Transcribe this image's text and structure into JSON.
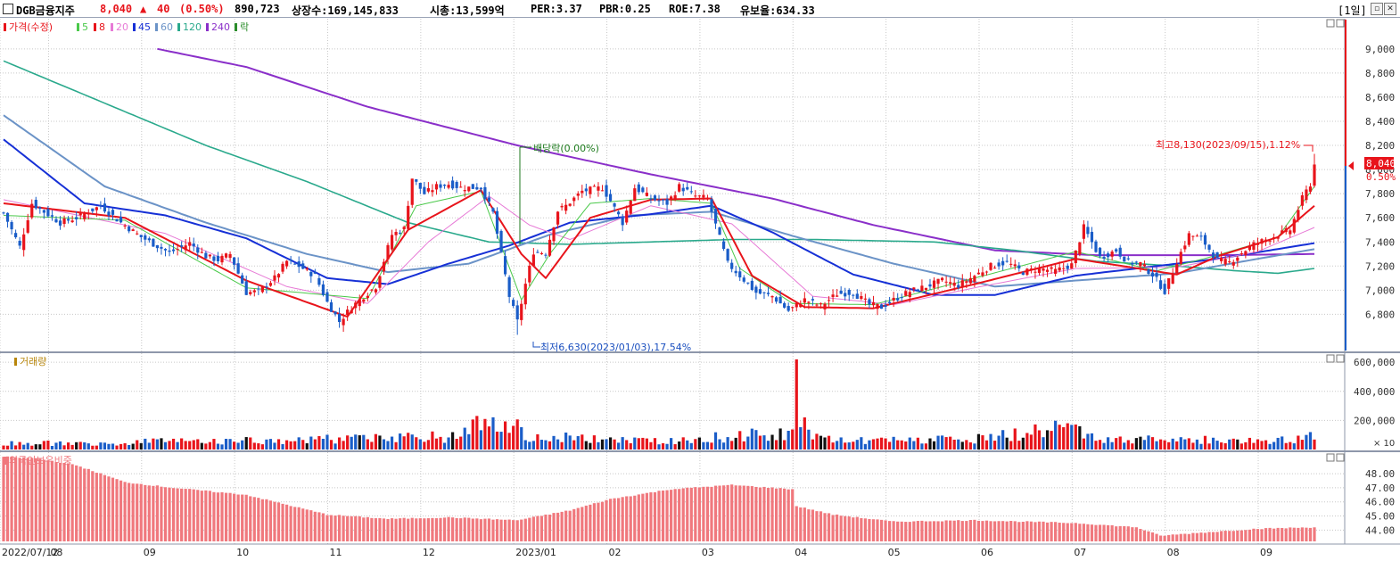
{
  "header": {
    "name": "DGB금융지주",
    "price": "8,040",
    "change_sign": "▲",
    "change": "40",
    "change_pct": "(0.50%)",
    "volume": "890,723",
    "listed": "상장수:169,145,833",
    "market_cap": "시총:13,599억",
    "per": "PER:3.37",
    "pbr": "PBR:0.25",
    "roe": "ROE:7.38",
    "reserve": "유보율:634.33",
    "period": "[1일]"
  },
  "price_panel": {
    "legend_title": "가격(수정)",
    "legend_items": [
      "5",
      "8",
      "20",
      "45",
      "60",
      "120",
      "240",
      "락"
    ],
    "current_price": "8,040",
    "current_pct": "0.50%",
    "high_note": "최고8,130(2023/09/15),1.12%",
    "low_note": "최저6,630(2023/01/03),17.54%",
    "div_note": "배당락(0.00%)"
  },
  "volume_panel": {
    "legend_title": "거래량",
    "unit": "× 10"
  },
  "foreign_panel": {
    "legend_title": "외국인보유비중"
  },
  "colors": {
    "up": "#e8141b",
    "down": "#1a5dc8",
    "ma5": "#4ac94a",
    "ma8": "#e8141b",
    "ma20": "#e77ad6",
    "ma45": "#1630d6",
    "ma60": "#6b93c7",
    "ma120": "#2aa98c",
    "ma240": "#8a2fc9",
    "foreign": "#f0787d"
  },
  "chart_data": [
    {
      "type": "candlestick",
      "title": "가격(수정)",
      "y_ticks": [
        6800,
        7000,
        7200,
        7400,
        7600,
        7800,
        8000,
        8200,
        8400,
        8600,
        8800,
        9000
      ],
      "ylim": [
        6500,
        9250
      ],
      "x_labels": [
        "2022/07/12",
        "08",
        "09",
        "10",
        "11",
        "12",
        "2023/01",
        "02",
        "03",
        "04",
        "05",
        "06",
        "07",
        "08",
        "09"
      ],
      "x_label_index": [
        0,
        12,
        35,
        58,
        81,
        104,
        127,
        150,
        173,
        196,
        219,
        242,
        265,
        288,
        311
      ],
      "close_anchors": [
        [
          0,
          7640
        ],
        [
          4,
          7360
        ],
        [
          7,
          7720
        ],
        [
          10,
          7650
        ],
        [
          14,
          7560
        ],
        [
          18,
          7600
        ],
        [
          24,
          7700
        ],
        [
          29,
          7560
        ],
        [
          34,
          7440
        ],
        [
          41,
          7310
        ],
        [
          46,
          7390
        ],
        [
          50,
          7280
        ],
        [
          53,
          7250
        ],
        [
          56,
          7300
        ],
        [
          60,
          6980
        ],
        [
          63,
          6990
        ],
        [
          67,
          7100
        ],
        [
          70,
          7240
        ],
        [
          73,
          7200
        ],
        [
          77,
          7120
        ],
        [
          80,
          6900
        ],
        [
          83,
          6740
        ],
        [
          86,
          6860
        ],
        [
          89,
          6950
        ],
        [
          92,
          7030
        ],
        [
          96,
          7460
        ],
        [
          99,
          7510
        ],
        [
          101,
          7930
        ],
        [
          104,
          7800
        ],
        [
          107,
          7860
        ],
        [
          110,
          7880
        ],
        [
          113,
          7850
        ],
        [
          118,
          7850
        ],
        [
          121,
          7640
        ],
        [
          125,
          6950
        ],
        [
          127,
          6740
        ],
        [
          129,
          7050
        ],
        [
          131,
          7320
        ],
        [
          134,
          7310
        ],
        [
          137,
          7660
        ],
        [
          139,
          7700
        ],
        [
          143,
          7820
        ],
        [
          148,
          7850
        ],
        [
          150,
          7740
        ],
        [
          153,
          7560
        ],
        [
          156,
          7850
        ],
        [
          160,
          7760
        ],
        [
          164,
          7720
        ],
        [
          167,
          7860
        ],
        [
          171,
          7780
        ],
        [
          174,
          7760
        ],
        [
          176,
          7540
        ],
        [
          179,
          7220
        ],
        [
          182,
          7120
        ],
        [
          186,
          6980
        ],
        [
          190,
          6950
        ],
        [
          194,
          6830
        ],
        [
          198,
          6920
        ],
        [
          202,
          6870
        ],
        [
          206,
          6970
        ],
        [
          210,
          6980
        ],
        [
          214,
          6880
        ],
        [
          217,
          6860
        ],
        [
          220,
          6920
        ],
        [
          224,
          6990
        ],
        [
          228,
          7030
        ],
        [
          232,
          7080
        ],
        [
          236,
          7040
        ],
        [
          240,
          7120
        ],
        [
          244,
          7200
        ],
        [
          248,
          7230
        ],
        [
          252,
          7150
        ],
        [
          256,
          7180
        ],
        [
          260,
          7160
        ],
        [
          264,
          7210
        ],
        [
          267,
          7520
        ],
        [
          271,
          7270
        ],
        [
          275,
          7330
        ],
        [
          278,
          7230
        ],
        [
          281,
          7220
        ],
        [
          284,
          7130
        ],
        [
          287,
          6990
        ],
        [
          290,
          7240
        ],
        [
          293,
          7460
        ],
        [
          296,
          7430
        ],
        [
          300,
          7250
        ],
        [
          303,
          7230
        ],
        [
          306,
          7310
        ],
        [
          309,
          7380
        ],
        [
          312,
          7420
        ],
        [
          315,
          7460
        ],
        [
          318,
          7500
        ],
        [
          321,
          7760
        ],
        [
          323,
          7880
        ],
        [
          324,
          8040
        ]
      ],
      "min_point": {
        "index": 127,
        "value": 6630,
        "date": "2023/01/03"
      },
      "max_point": {
        "index": 324,
        "value": 8130,
        "date": "2023/09/15"
      },
      "ma_lines": [
        {
          "name": "5",
          "anchors": [
            [
              0,
              7620
            ],
            [
              30,
              7580
            ],
            [
              60,
              7020
            ],
            [
              90,
              6930
            ],
            [
              102,
              7700
            ],
            [
              118,
              7820
            ],
            [
              124,
              7280
            ],
            [
              128,
              6920
            ],
            [
              135,
              7300
            ],
            [
              145,
              7720
            ],
            [
              160,
              7760
            ],
            [
              175,
              7720
            ],
            [
              182,
              7180
            ],
            [
              195,
              6890
            ],
            [
              215,
              6880
            ],
            [
              240,
              7100
            ],
            [
              265,
              7320
            ],
            [
              285,
              7160
            ],
            [
              300,
              7290
            ],
            [
              315,
              7440
            ],
            [
              324,
              7860
            ]
          ]
        },
        {
          "name": "8",
          "anchors": [
            [
              0,
              7720
            ],
            [
              30,
              7600
            ],
            [
              60,
              7080
            ],
            [
              85,
              6780
            ],
            [
              100,
              7500
            ],
            [
              118,
              7830
            ],
            [
              128,
              7300
            ],
            [
              134,
              7100
            ],
            [
              145,
              7600
            ],
            [
              160,
              7750
            ],
            [
              175,
              7760
            ],
            [
              185,
              7120
            ],
            [
              198,
              6860
            ],
            [
              215,
              6850
            ],
            [
              240,
              7050
            ],
            [
              265,
              7260
            ],
            [
              290,
              7130
            ],
            [
              300,
              7280
            ],
            [
              315,
              7440
            ],
            [
              324,
              7700
            ]
          ]
        },
        {
          "name": "20",
          "anchors": [
            [
              0,
              7750
            ],
            [
              40,
              7470
            ],
            [
              70,
              7030
            ],
            [
              90,
              6890
            ],
            [
              105,
              7400
            ],
            [
              120,
              7780
            ],
            [
              130,
              7540
            ],
            [
              140,
              7420
            ],
            [
              160,
              7700
            ],
            [
              180,
              7550
            ],
            [
              200,
              6950
            ],
            [
              220,
              6880
            ],
            [
              240,
              7020
            ],
            [
              265,
              7180
            ],
            [
              290,
              7190
            ],
            [
              310,
              7320
            ],
            [
              324,
              7520
            ]
          ]
        },
        {
          "name": "45",
          "anchors": [
            [
              0,
              8250
            ],
            [
              20,
              7720
            ],
            [
              40,
              7620
            ],
            [
              60,
              7430
            ],
            [
              80,
              7100
            ],
            [
              95,
              7050
            ],
            [
              110,
              7220
            ],
            [
              125,
              7370
            ],
            [
              140,
              7560
            ],
            [
              160,
              7630
            ],
            [
              175,
              7700
            ],
            [
              190,
              7480
            ],
            [
              210,
              7130
            ],
            [
              230,
              6960
            ],
            [
              245,
              6960
            ],
            [
              265,
              7120
            ],
            [
              285,
              7200
            ],
            [
              300,
              7260
            ],
            [
              324,
              7390
            ]
          ]
        },
        {
          "name": "60",
          "anchors": [
            [
              0,
              8450
            ],
            [
              25,
              7860
            ],
            [
              50,
              7560
            ],
            [
              75,
              7300
            ],
            [
              95,
              7150
            ],
            [
              115,
              7220
            ],
            [
              135,
              7460
            ],
            [
              155,
              7620
            ],
            [
              175,
              7650
            ],
            [
              195,
              7450
            ],
            [
              220,
              7220
            ],
            [
              245,
              7030
            ],
            [
              265,
              7080
            ],
            [
              290,
              7140
            ],
            [
              310,
              7260
            ],
            [
              324,
              7340
            ]
          ]
        },
        {
          "name": "120",
          "anchors": [
            [
              0,
              8900
            ],
            [
              25,
              8550
            ],
            [
              50,
              8200
            ],
            [
              75,
              7900
            ],
            [
              100,
              7560
            ],
            [
              120,
              7400
            ],
            [
              140,
              7380
            ],
            [
              160,
              7400
            ],
            [
              180,
              7420
            ],
            [
              200,
              7420
            ],
            [
              230,
              7400
            ],
            [
              250,
              7330
            ],
            [
              270,
              7240
            ],
            [
              290,
              7200
            ],
            [
              305,
              7160
            ],
            [
              315,
              7140
            ],
            [
              324,
              7180
            ]
          ]
        },
        {
          "name": "240",
          "anchors": [
            [
              38,
              9000
            ],
            [
              60,
              8850
            ],
            [
              90,
              8520
            ],
            [
              127,
              8200
            ],
            [
              160,
              7960
            ],
            [
              190,
              7760
            ],
            [
              215,
              7540
            ],
            [
              245,
              7330
            ],
            [
              270,
              7290
            ],
            [
              300,
              7290
            ],
            [
              324,
              7300
            ]
          ]
        }
      ]
    },
    {
      "type": "bar",
      "title": "거래량",
      "y_ticks": [
        200000,
        400000,
        600000
      ],
      "ylim": [
        0,
        650000
      ],
      "anchors": [
        [
          0,
          40000
        ],
        [
          20,
          45000
        ],
        [
          40,
          55000
        ],
        [
          60,
          60000
        ],
        [
          80,
          70000
        ],
        [
          100,
          80000
        ],
        [
          105,
          90000
        ],
        [
          110,
          70000
        ],
        [
          119,
          210000
        ],
        [
          126,
          120000
        ],
        [
          127,
          150000
        ],
        [
          130,
          90000
        ],
        [
          140,
          80000
        ],
        [
          160,
          60000
        ],
        [
          170,
          70000
        ],
        [
          180,
          90000
        ],
        [
          195,
          120000
        ],
        [
          196,
          620000
        ],
        [
          197,
          190000
        ],
        [
          200,
          80000
        ],
        [
          215,
          60000
        ],
        [
          240,
          70000
        ],
        [
          266,
          160000
        ],
        [
          270,
          60000
        ],
        [
          290,
          70000
        ],
        [
          310,
          60000
        ],
        [
          322,
          70000
        ],
        [
          323,
          100000
        ],
        [
          324,
          90000
        ]
      ]
    },
    {
      "type": "bar",
      "title": "외국인보유비중",
      "y_ticks": [
        44,
        45,
        46,
        47,
        48
      ],
      "ylim": [
        43.2,
        49.4
      ],
      "anchors": [
        [
          0,
          49.2
        ],
        [
          8,
          49.1
        ],
        [
          18,
          48.6
        ],
        [
          30,
          47.4
        ],
        [
          42,
          47.0
        ],
        [
          60,
          46.5
        ],
        [
          80,
          45.1
        ],
        [
          95,
          44.8
        ],
        [
          110,
          44.9
        ],
        [
          127,
          44.7
        ],
        [
          140,
          45.4
        ],
        [
          150,
          46.2
        ],
        [
          165,
          46.9
        ],
        [
          180,
          47.2
        ],
        [
          195,
          46.9
        ],
        [
          196,
          45.7
        ],
        [
          205,
          45.1
        ],
        [
          220,
          44.6
        ],
        [
          240,
          44.7
        ],
        [
          265,
          44.5
        ],
        [
          280,
          44.2
        ],
        [
          286,
          43.6
        ],
        [
          295,
          43.8
        ],
        [
          310,
          44.1
        ],
        [
          324,
          44.2
        ]
      ]
    }
  ]
}
